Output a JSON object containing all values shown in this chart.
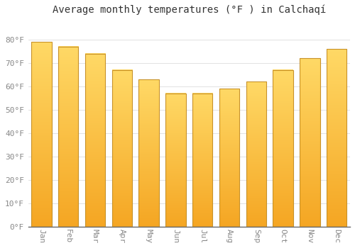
{
  "title": "Average monthly temperatures (°F ) in Calchaqí",
  "months": [
    "Jan",
    "Feb",
    "Mar",
    "Apr",
    "May",
    "Jun",
    "Jul",
    "Aug",
    "Sep",
    "Oct",
    "Nov",
    "Dec"
  ],
  "values": [
    79,
    77,
    74,
    67,
    63,
    57,
    57,
    59,
    62,
    67,
    72,
    76
  ],
  "bar_color_bottom": "#F5A623",
  "bar_color_top": "#FFD966",
  "bar_edge_color": "#C8922A",
  "background_color": "#FFFFFF",
  "plot_bg_color": "#FFFFFF",
  "grid_color": "#DDDDDD",
  "ylim": [
    0,
    88
  ],
  "yticks": [
    0,
    10,
    20,
    30,
    40,
    50,
    60,
    70,
    80
  ],
  "title_fontsize": 10,
  "tick_fontsize": 8,
  "tick_color": "#888888",
  "title_color": "#333333",
  "fig_width": 5.0,
  "fig_height": 3.5,
  "dpi": 100,
  "bar_width": 0.75
}
